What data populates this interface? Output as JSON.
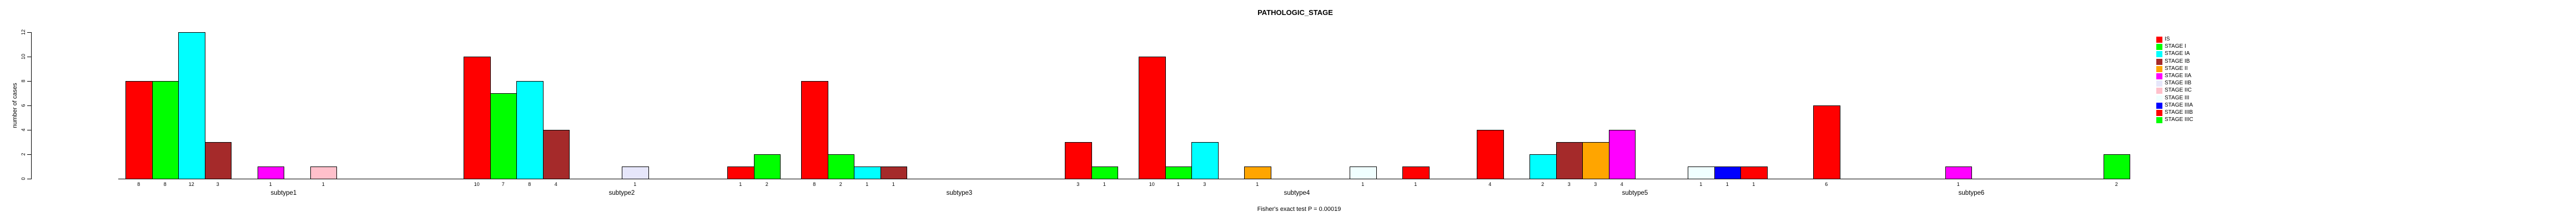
{
  "title": "PATHOLOGIC_STAGE",
  "caption": "Fisher's exact test P = 0.00019",
  "y_axis_label": "number of cases",
  "chart_data": {
    "type": "bar",
    "title": "PATHOLOGIC_STAGE",
    "subtitle": "Fisher's exact test P = 0.00019",
    "xlabel": "",
    "ylabel": "number of cases",
    "ylim": [
      0,
      12
    ],
    "yticks": [
      0,
      2,
      4,
      6,
      8,
      10,
      12
    ],
    "grid": false,
    "legend_position": "right-outside",
    "categories": [
      "subtype1",
      "subtype2",
      "subtype3",
      "subtype4",
      "subtype5",
      "subtype6"
    ],
    "colors": [
      "#FF0000",
      "#00FF00",
      "#00FFFF",
      "#A52A2A",
      "#FFA500",
      "#FF00FF",
      "#E6E6FA",
      "#FFC0CB",
      "#F0FFFF",
      "#0000FF",
      "#FF0000",
      "#00FF00"
    ],
    "series": [
      {
        "name": "IS",
        "values": [
          8,
          10,
          8,
          10,
          4,
          6
        ]
      },
      {
        "name": "STAGE I",
        "values": [
          8,
          7,
          2,
          1,
          0,
          0
        ]
      },
      {
        "name": "STAGE IA",
        "values": [
          12,
          8,
          1,
          3,
          2,
          0
        ]
      },
      {
        "name": "STAGE IB",
        "values": [
          3,
          4,
          1,
          0,
          3,
          0
        ]
      },
      {
        "name": "STAGE II",
        "values": [
          0,
          0,
          0,
          1,
          3,
          0
        ]
      },
      {
        "name": "STAGE IIA",
        "values": [
          1,
          0,
          0,
          0,
          4,
          1
        ]
      },
      {
        "name": "STAGE IIB",
        "values": [
          0,
          1,
          0,
          0,
          0,
          0
        ]
      },
      {
        "name": "STAGE IIC",
        "values": [
          1,
          0,
          0,
          0,
          0,
          0
        ]
      },
      {
        "name": "STAGE III",
        "values": [
          0,
          0,
          0,
          1,
          1,
          0
        ]
      },
      {
        "name": "STAGE IIIA",
        "values": [
          0,
          0,
          0,
          0,
          1,
          0
        ]
      },
      {
        "name": "STAGE IIIB",
        "values": [
          0,
          1,
          3,
          1,
          1,
          0
        ]
      },
      {
        "name": "STAGE IIIC",
        "values": [
          0,
          2,
          1,
          0,
          0,
          2
        ]
      }
    ],
    "bar_value_labels": "shown for non-zero bars"
  }
}
